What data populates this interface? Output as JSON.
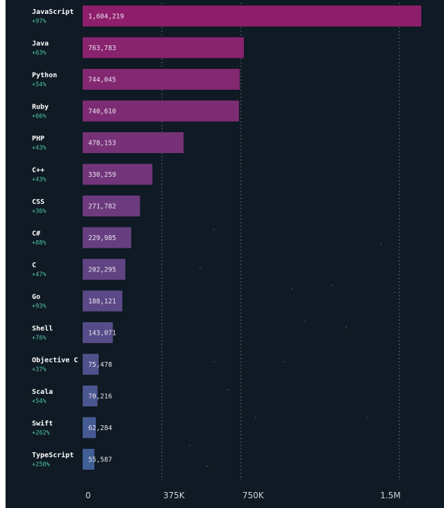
{
  "chart_data": {
    "type": "bar",
    "orientation": "horizontal",
    "categories": [
      "JavaScript",
      "Java",
      "Python",
      "Ruby",
      "PHP",
      "C++",
      "CSS",
      "C#",
      "C",
      "Go",
      "Shell",
      "Objective C",
      "Scala",
      "Swift",
      "TypeScript"
    ],
    "growth": [
      "+97%",
      "+63%",
      "+54%",
      "+66%",
      "+43%",
      "+43%",
      "+36%",
      "+88%",
      "+47%",
      "+93%",
      "+76%",
      "+37%",
      "+54%",
      "+262%",
      "+250%"
    ],
    "values": [
      1604219,
      763783,
      744045,
      740610,
      478153,
      330259,
      271782,
      229985,
      202295,
      188121,
      143071,
      75478,
      70216,
      62284,
      55587
    ],
    "value_labels": [
      "1,604,219",
      "763,783",
      "744,045",
      "740,610",
      "478,153",
      "330,259",
      "271,782",
      "229,985",
      "202,295",
      "188,121",
      "143,071",
      "75,478",
      "70,216",
      "62,284",
      "55,587"
    ],
    "xlim": [
      0,
      1600000
    ],
    "x_ticks": [
      0,
      375000,
      750000,
      1500000
    ],
    "x_tick_labels": [
      "0",
      "375K",
      "750K",
      "1.5M"
    ],
    "grid": true,
    "colors": {
      "background": "#0f1a24",
      "bar_start": "#8e1e6b",
      "bar_end": "#3f5f95",
      "growth_text": "#4fc3a1"
    }
  }
}
